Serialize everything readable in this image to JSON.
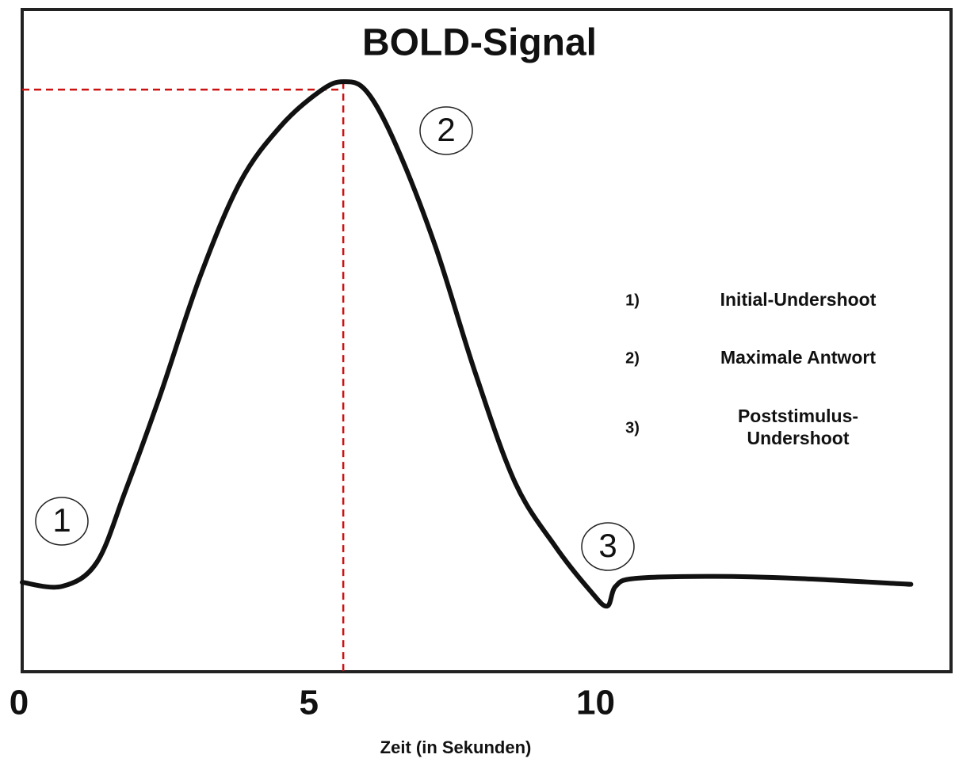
{
  "chart_data": {
    "type": "line",
    "title": "BOLD-Signal",
    "x_label": "Zeit (in Sekunden)",
    "xlim": [
      0,
      16.2
    ],
    "xticks": [
      0,
      5,
      10
    ],
    "ylim": [
      0,
      100
    ],
    "series": [
      {
        "color": "#111111",
        "x": [
          0,
          0.7,
          1.3,
          1.8,
          2.4,
          3.1,
          3.8,
          4.5,
          5.2,
          5.6,
          6.0,
          6.5,
          7.2,
          7.9,
          8.6,
          9.3,
          9.9,
          10.2,
          10.35,
          10.7,
          12.1,
          13.5,
          15.5
        ],
        "values": [
          13.5,
          12.9,
          16.5,
          27.3,
          41.6,
          59.6,
          73.9,
          82.3,
          87.7,
          89.1,
          87.7,
          79.9,
          64.4,
          45.2,
          28.5,
          18.9,
          12.3,
          9.9,
          12.9,
          14.1,
          14.4,
          14.1,
          13.2
        ]
      }
    ],
    "peak_line_color": "#cc1111",
    "annotations": [
      {
        "label": "1",
        "marker": "1)",
        "text": [
          "Initial-Undershoot"
        ]
      },
      {
        "label": "2",
        "marker": "2)",
        "text": [
          "Maximale Antwort"
        ]
      },
      {
        "label": "3",
        "marker": "3)",
        "text": [
          "Poststimulus-",
          "Undershoot"
        ]
      }
    ]
  }
}
